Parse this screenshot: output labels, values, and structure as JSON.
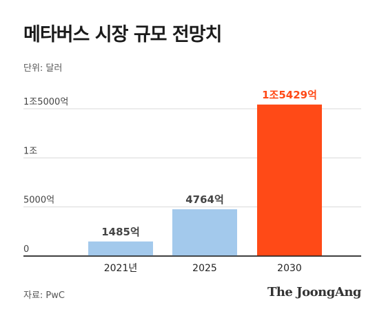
{
  "header": {
    "title": "메타버스 시장 규모 전망치",
    "unit": "단위: 달러"
  },
  "footer": {
    "source": "자료: PwC",
    "brand": "The JoongAng"
  },
  "chart_data": {
    "type": "bar",
    "categories": [
      "2021년",
      "2025",
      "2030"
    ],
    "values": [
      1485,
      4764,
      15429
    ],
    "value_unit": "억",
    "data_labels": [
      "1485억",
      "4764억",
      "1조5429억"
    ],
    "ylim": [
      0,
      15000
    ],
    "yticks": [
      0,
      5000,
      10000,
      15000
    ],
    "ytick_labels": [
      "0",
      "5000억",
      "1조",
      "1조5000억"
    ],
    "grid": true,
    "colors": [
      "#a3c9ec",
      "#a3c9ec",
      "#ff4a17"
    ],
    "label_colors": [
      "#444444",
      "#444444",
      "#ff4a17"
    ]
  }
}
